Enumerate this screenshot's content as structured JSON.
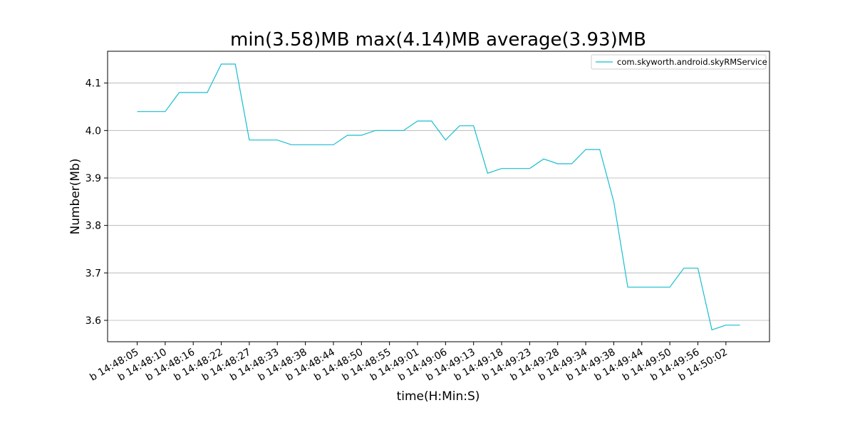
{
  "chart_data": {
    "type": "line",
    "title": "min(3.58)MB max(4.14)MB average(3.93)MB",
    "xlabel": "time(H:Min:S)",
    "ylabel": "Number(Mb)",
    "ylim": [
      3.555,
      4.167
    ],
    "yticks": [
      3.6,
      3.7,
      3.8,
      3.9,
      4.0,
      4.1
    ],
    "ytick_labels": [
      "3.6",
      "3.7",
      "3.8",
      "3.9",
      "4.0",
      "4.1"
    ],
    "xtick_labels": [
      "b 14:48:05",
      "b 14:48:10",
      "b 14:48:16",
      "b 14:48:22",
      "b 14:48:27",
      "b 14:48:33",
      "b 14:48:38",
      "b 14:48:44",
      "b 14:48:50",
      "b 14:48:55",
      "b 14:49:01",
      "b 14:49:06",
      "b 14:49:13",
      "b 14:49:18",
      "b 14:49:23",
      "b 14:49:28",
      "b 14:49:34",
      "b 14:49:38",
      "b 14:49:44",
      "b 14:49:50",
      "b 14:49:56",
      "b 14:50:02"
    ],
    "grid": "horizontal",
    "legend_position": "top-right",
    "series": [
      {
        "name": "com.skyworth.android.skyRMService",
        "color": "#17becf",
        "values": [
          4.04,
          4.04,
          4.04,
          4.08,
          4.08,
          4.08,
          4.14,
          4.14,
          3.98,
          3.98,
          3.98,
          3.97,
          3.97,
          3.97,
          3.97,
          3.99,
          3.99,
          4.0,
          4.0,
          4.0,
          4.02,
          4.02,
          3.98,
          4.01,
          4.01,
          3.91,
          3.92,
          3.92,
          3.92,
          3.94,
          3.93,
          3.93,
          3.96,
          3.96,
          3.85,
          3.67,
          3.67,
          3.67,
          3.67,
          3.71,
          3.71,
          3.58,
          3.59,
          3.59
        ]
      }
    ]
  }
}
